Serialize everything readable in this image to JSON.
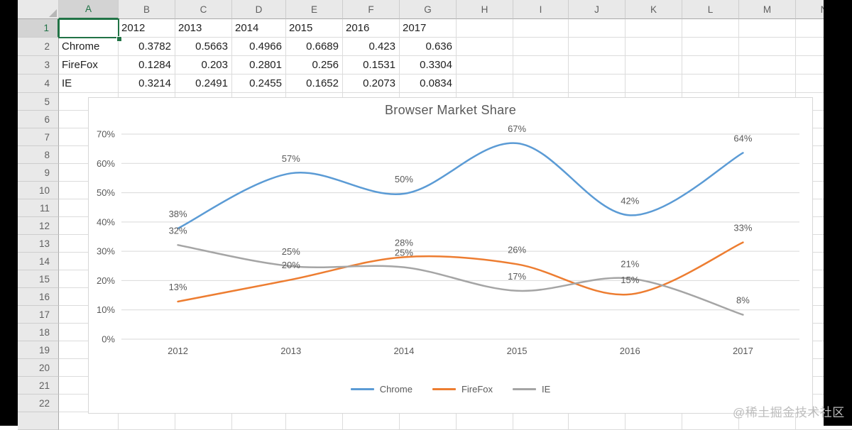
{
  "sheet": {
    "column_letters": [
      "A",
      "B",
      "C",
      "D",
      "E",
      "F",
      "G",
      "H",
      "I",
      "J",
      "K",
      "L",
      "M",
      "N"
    ],
    "row_numbers": [
      "1",
      "2",
      "3",
      "4",
      "5",
      "6",
      "7",
      "8",
      "9",
      "10",
      "11",
      "12",
      "13",
      "14",
      "15",
      "16",
      "17",
      "18",
      "19",
      "20",
      "21",
      "22"
    ],
    "selected_cell": "A1",
    "selected_column": "A",
    "selected_row": "1",
    "table": {
      "years": [
        "2012",
        "2013",
        "2014",
        "2015",
        "2016",
        "2017"
      ],
      "rows": [
        {
          "name": "Chrome",
          "values": [
            "0.3782",
            "0.5663",
            "0.4966",
            "0.6689",
            "0.423",
            "0.636"
          ]
        },
        {
          "name": "FireFox",
          "values": [
            "0.1284",
            "0.203",
            "0.2801",
            "0.256",
            "0.1531",
            "0.3304"
          ]
        },
        {
          "name": "IE",
          "values": [
            "0.3214",
            "0.2491",
            "0.2455",
            "0.1652",
            "0.2073",
            "0.0834"
          ]
        }
      ]
    }
  },
  "chart_data": {
    "type": "line",
    "title": "Browser Market Share",
    "categories": [
      "2012",
      "2013",
      "2014",
      "2015",
      "2016",
      "2017"
    ],
    "series": [
      {
        "name": "Chrome",
        "color": "#5B9BD5",
        "values": [
          37.82,
          56.63,
          49.66,
          66.89,
          42.3,
          63.6
        ],
        "labels": [
          "38%",
          "57%",
          "50%",
          "67%",
          "42%",
          "64%"
        ]
      },
      {
        "name": "FireFox",
        "color": "#ED7D31",
        "values": [
          12.84,
          20.3,
          28.01,
          25.6,
          15.31,
          33.04
        ],
        "labels": [
          "13%",
          "20%",
          "28%",
          "26%",
          "15%",
          "33%"
        ]
      },
      {
        "name": "IE",
        "color": "#A5A5A5",
        "values": [
          32.14,
          24.91,
          24.55,
          16.52,
          20.73,
          8.34
        ],
        "labels": [
          "32%",
          "25%",
          "25%",
          "17%",
          "21%",
          "8%"
        ]
      }
    ],
    "y_ticks": [
      "0%",
      "10%",
      "20%",
      "30%",
      "40%",
      "50%",
      "60%",
      "70%"
    ],
    "ylim": [
      0,
      70
    ],
    "xlabel": "",
    "ylabel": "",
    "grid": true,
    "smooth_lines": true,
    "legend_position": "bottom"
  },
  "colors": {
    "excel_accent_green": "#217346",
    "chart_text": "#595959",
    "gridline": "#D9D9D9"
  },
  "watermark": {
    "text": "@稀土掘金技术社区"
  }
}
